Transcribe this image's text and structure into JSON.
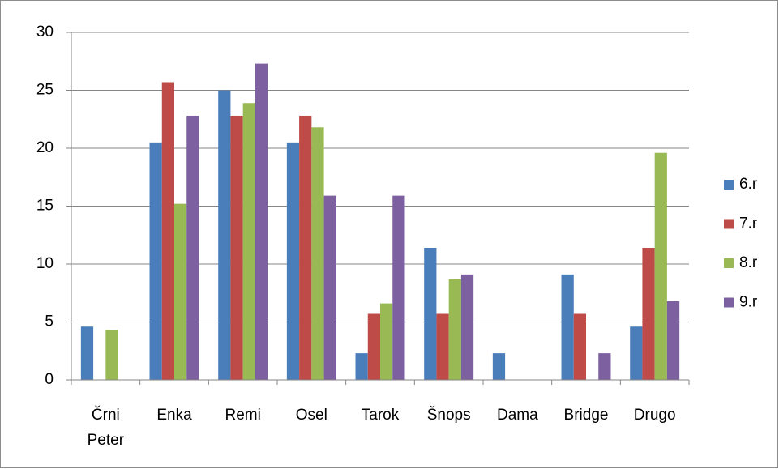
{
  "chart_data": {
    "type": "bar",
    "categories": [
      "Črni Peter",
      "Enka",
      "Remi",
      "Osel",
      "Tarok",
      "Šnops",
      "Dama",
      "Bridge",
      "Drugo"
    ],
    "series": [
      {
        "name": "6.r",
        "color": "#4a7ebb",
        "values": [
          4.6,
          20.5,
          25,
          20.5,
          2.3,
          11.4,
          2.3,
          9.1,
          4.6
        ]
      },
      {
        "name": "7.r",
        "color": "#be4b48",
        "values": [
          0,
          25.7,
          22.8,
          22.8,
          5.7,
          5.7,
          0,
          5.7,
          11.4
        ]
      },
      {
        "name": "8.r",
        "color": "#98b954",
        "values": [
          4.3,
          15.2,
          23.9,
          21.8,
          6.6,
          8.7,
          0,
          0,
          19.6
        ]
      },
      {
        "name": "9.r",
        "color": "#7d60a0",
        "values": [
          0,
          22.8,
          27.3,
          15.9,
          15.9,
          9.1,
          0,
          2.3,
          6.8
        ]
      }
    ],
    "ylim": [
      0,
      30
    ],
    "yticks": [
      0,
      5,
      10,
      15,
      20,
      25,
      30
    ],
    "grid": true,
    "legend": "right"
  }
}
